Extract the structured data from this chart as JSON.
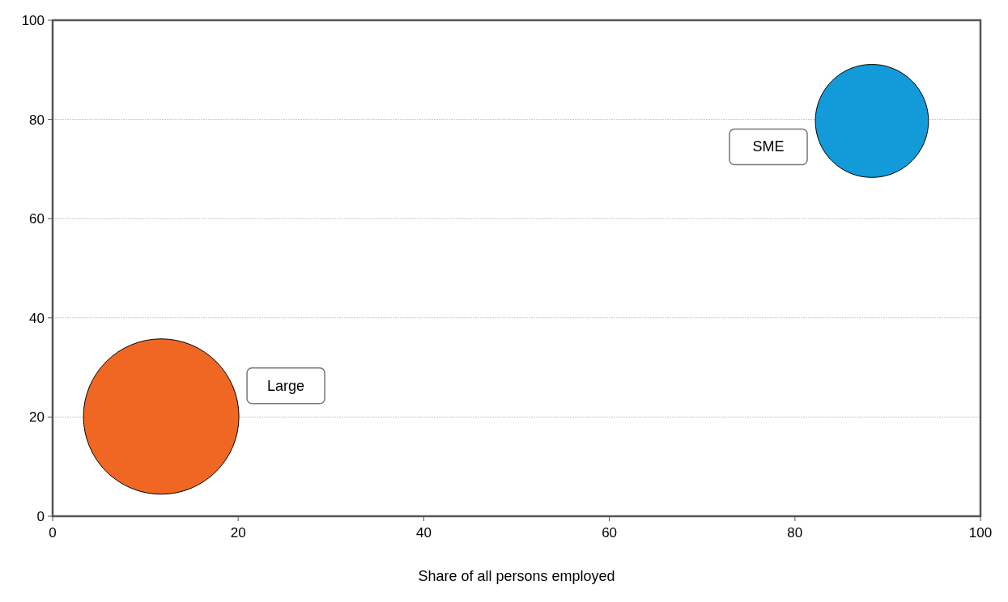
{
  "chart_data": {
    "type": "bubble",
    "xlabel": "Share of all persons employed",
    "xlim": [
      0,
      100
    ],
    "xticks": [
      0,
      20,
      40,
      60,
      80,
      100
    ],
    "ylim": [
      0,
      100
    ],
    "yticks": [
      0,
      20,
      40,
      60,
      80,
      100
    ],
    "grid": "y",
    "series": [
      {
        "name": "SME",
        "color": "#129bd8",
        "x": [
          88.3
        ],
        "values": [
          79.7
        ],
        "sizes": [
          0.53
        ]
      },
      {
        "name": "Large",
        "color": "#f06724",
        "x": [
          11.7
        ],
        "values": [
          20.1
        ],
        "sizes": [
          1
        ]
      }
    ]
  }
}
